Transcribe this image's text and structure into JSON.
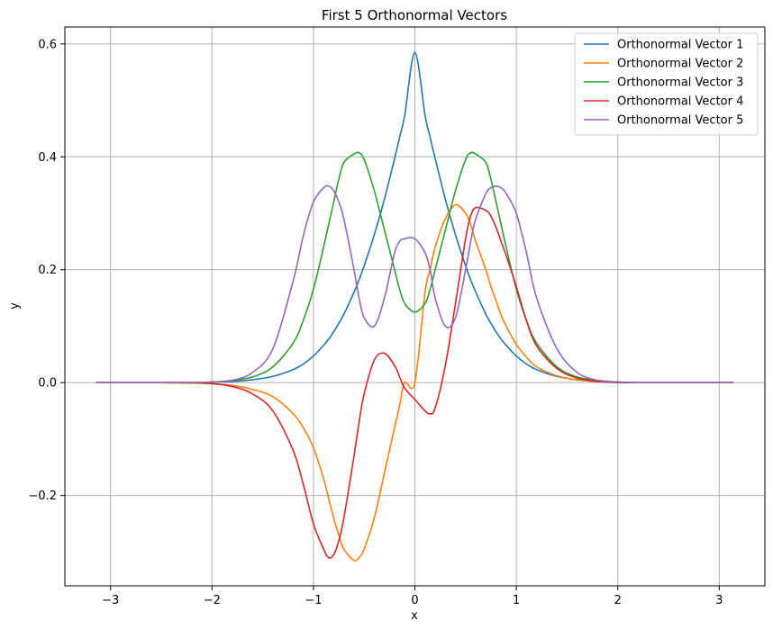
{
  "chart_data": {
    "type": "line",
    "title": "First 5 Orthonormal Vectors",
    "xlabel": "x",
    "ylabel": "y",
    "xlim": [
      -3.45,
      3.45
    ],
    "ylim": [
      -0.36,
      0.63
    ],
    "xticks": [
      -3,
      -2,
      -1,
      0,
      1,
      2,
      3
    ],
    "xtick_labels": [
      "−3",
      "−2",
      "−1",
      "0",
      "1",
      "2",
      "3"
    ],
    "yticks": [
      -0.2,
      0.0,
      0.2,
      0.4,
      0.6
    ],
    "ytick_labels": [
      "−0.2",
      "0.0",
      "0.2",
      "0.4",
      "0.6"
    ],
    "grid": true,
    "legend_position": "top-right",
    "x": [
      -3.14,
      -2.6,
      -2.2,
      -2.0,
      -1.8,
      -1.6,
      -1.4,
      -1.2,
      -1.1,
      -1.0,
      -0.9,
      -0.85,
      -0.8,
      -0.75,
      -0.7,
      -0.6,
      -0.55,
      -0.5,
      -0.4,
      -0.3,
      -0.2,
      -0.15,
      -0.1,
      0.0,
      0.1,
      0.15,
      0.2,
      0.3,
      0.4,
      0.5,
      0.55,
      0.6,
      0.7,
      0.75,
      0.8,
      0.85,
      0.9,
      1.0,
      1.1,
      1.2,
      1.4,
      1.6,
      1.8,
      2.0,
      2.2,
      2.6,
      3.14
    ],
    "series": [
      {
        "name": "Orthonormal Vector 1",
        "color": "#1f77b4",
        "values": [
          0.0,
          0.0,
          0.0,
          0.001,
          0.002,
          0.005,
          0.011,
          0.023,
          0.033,
          0.047,
          0.066,
          0.077,
          0.09,
          0.105,
          0.121,
          0.16,
          0.182,
          0.207,
          0.262,
          0.325,
          0.397,
          0.435,
          0.474,
          0.585,
          0.474,
          0.435,
          0.397,
          0.325,
          0.262,
          0.207,
          0.182,
          0.16,
          0.121,
          0.105,
          0.09,
          0.077,
          0.066,
          0.047,
          0.033,
          0.023,
          0.011,
          0.005,
          0.002,
          0.001,
          0.0,
          0.0,
          0.0
        ]
      },
      {
        "name": "Orthonormal Vector 2",
        "color": "#ff7f0e",
        "values": [
          0.0,
          0.0,
          -0.001,
          -0.002,
          -0.005,
          -0.012,
          -0.025,
          -0.055,
          -0.08,
          -0.115,
          -0.17,
          -0.205,
          -0.24,
          -0.27,
          -0.295,
          -0.315,
          -0.31,
          -0.295,
          -0.24,
          -0.16,
          -0.08,
          -0.04,
          0.0,
          0.0,
          0.16,
          0.2,
          0.24,
          0.29,
          0.315,
          0.3,
          0.28,
          0.25,
          0.2,
          0.17,
          0.145,
          0.12,
          0.1,
          0.068,
          0.045,
          0.028,
          0.012,
          0.005,
          0.002,
          0.001,
          0.0,
          0.0,
          0.0
        ]
      },
      {
        "name": "Orthonormal Vector 3",
        "color": "#2ca02c",
        "values": [
          0.0,
          0.0,
          0.0,
          0.001,
          0.004,
          0.01,
          0.028,
          0.07,
          0.11,
          0.165,
          0.24,
          0.28,
          0.32,
          0.36,
          0.39,
          0.405,
          0.407,
          0.395,
          0.34,
          0.27,
          0.2,
          0.165,
          0.14,
          0.125,
          0.14,
          0.165,
          0.2,
          0.27,
          0.34,
          0.395,
          0.407,
          0.405,
          0.39,
          0.36,
          0.32,
          0.28,
          0.24,
          0.165,
          0.11,
          0.07,
          0.028,
          0.01,
          0.004,
          0.001,
          0.0,
          0.0,
          0.0
        ]
      },
      {
        "name": "Orthonormal Vector 4",
        "color": "#d62728",
        "values": [
          0.0,
          0.0,
          0.0,
          -0.002,
          -0.007,
          -0.02,
          -0.05,
          -0.12,
          -0.18,
          -0.25,
          -0.295,
          -0.31,
          -0.305,
          -0.28,
          -0.24,
          -0.13,
          -0.07,
          -0.02,
          0.04,
          0.052,
          0.03,
          0.01,
          -0.01,
          -0.03,
          -0.05,
          -0.055,
          -0.045,
          0.03,
          0.14,
          0.255,
          0.295,
          0.31,
          0.305,
          0.295,
          0.275,
          0.25,
          0.225,
          0.17,
          0.11,
          0.065,
          0.025,
          0.008,
          0.002,
          0.0,
          0.0,
          0.0,
          0.0
        ]
      },
      {
        "name": "Orthonormal Vector 5",
        "color": "#9467bd",
        "values": [
          0.0,
          0.0,
          0.0,
          0.001,
          0.004,
          0.018,
          0.06,
          0.18,
          0.26,
          0.32,
          0.345,
          0.348,
          0.34,
          0.32,
          0.29,
          0.2,
          0.15,
          0.115,
          0.1,
          0.15,
          0.23,
          0.25,
          0.255,
          0.255,
          0.23,
          0.2,
          0.15,
          0.1,
          0.115,
          0.2,
          0.25,
          0.29,
          0.335,
          0.345,
          0.348,
          0.345,
          0.335,
          0.3,
          0.23,
          0.15,
          0.06,
          0.018,
          0.004,
          0.001,
          0.0,
          0.0,
          0.0
        ]
      }
    ]
  }
}
